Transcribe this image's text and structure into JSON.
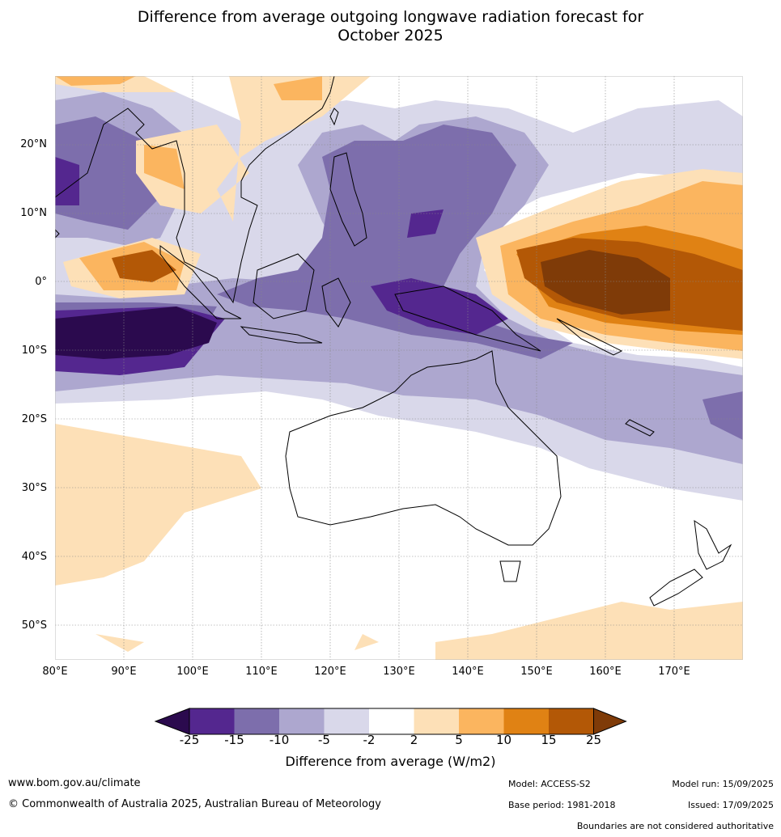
{
  "title_line1": "Difference from average outgoing longwave radiation forecast for",
  "title_line2": "October 2025",
  "lat_labels": [
    "20°N",
    "10°N",
    "0°",
    "10°S",
    "20°S",
    "30°S",
    "40°S",
    "50°S"
  ],
  "lon_labels": [
    "80°E",
    "90°E",
    "100°E",
    "110°E",
    "120°E",
    "130°E",
    "140°E",
    "150°E",
    "160°E",
    "170°E"
  ],
  "colorbar": {
    "ticks": [
      "-25",
      "-15",
      "-10",
      "-5",
      "-2",
      "2",
      "5",
      "10",
      "15",
      "25"
    ],
    "colors": [
      "#2b0a4e",
      "#54278f",
      "#7d6eac",
      "#ada7cf",
      "#d9d8ea",
      "#ffffff",
      "#fde0b7",
      "#fbb55f",
      "#e08214",
      "#b35806",
      "#7f3b08"
    ],
    "label": "Difference from average (W/m2)"
  },
  "footer": {
    "url": "www.bom.gov.au/climate",
    "copyright": "© Commonwealth of Australia 2025, Australian Bureau of Meteorology",
    "model": "Model: ACCESS-S2",
    "base_period": "Base period: 1981-2018",
    "model_run": "Model run: 15/09/2025",
    "issued": "Issued: 17/09/2025",
    "disclaimer": "Boundaries are not considered authoritative"
  }
}
